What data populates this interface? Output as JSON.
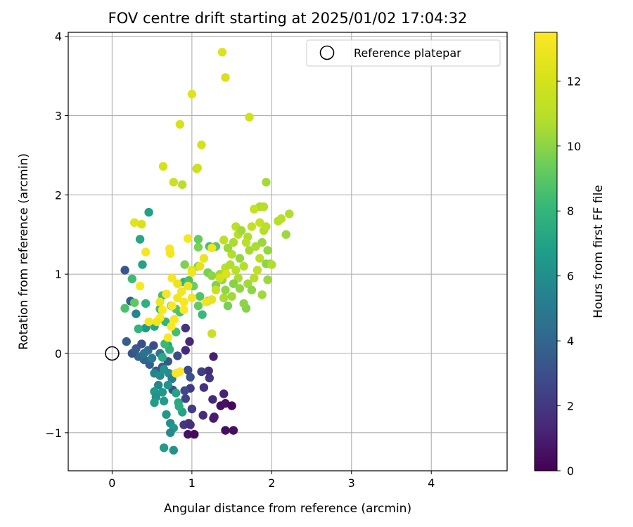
{
  "chart_data": {
    "type": "scatter",
    "title": "FOV centre drift starting at 2025/01/02 17:04:32",
    "xlabel": "Angular distance from reference (arcmin)",
    "ylabel": "Rotation from reference (arcmin)",
    "xlim": [
      -0.55,
      4.95
    ],
    "ylim": [
      -1.48,
      4.05
    ],
    "x_ticks": [
      0,
      1,
      2,
      3,
      4
    ],
    "y_ticks": [
      -1,
      0,
      1,
      2,
      3,
      4
    ],
    "grid": true,
    "legend": {
      "placement": "upper right",
      "entries": [
        "Reference platepar"
      ]
    },
    "reference_point": {
      "label": "Reference platepar",
      "x": 0,
      "y": 0
    },
    "colorbar": {
      "label": "Hours from first FF file",
      "colormap": "viridis",
      "min": 0,
      "max": 13.5,
      "ticks": [
        0,
        2,
        4,
        6,
        8,
        10,
        12
      ]
    },
    "points": [
      {
        "x": 0.95,
        "y": -1.02,
        "h": 0.6
      },
      {
        "x": 1.03,
        "y": -1.02,
        "h": 0.3
      },
      {
        "x": 1.42,
        "y": -0.97,
        "h": 0.4
      },
      {
        "x": 1.52,
        "y": -0.97,
        "h": 0.5
      },
      {
        "x": 1.27,
        "y": -0.82,
        "h": 0.8
      },
      {
        "x": 1.28,
        "y": -0.8,
        "h": 1.0
      },
      {
        "x": 1.36,
        "y": -0.66,
        "h": 0.5
      },
      {
        "x": 1.42,
        "y": -0.63,
        "h": 0.6
      },
      {
        "x": 1.5,
        "y": -0.66,
        "h": 0.3
      },
      {
        "x": 1.4,
        "y": -0.51,
        "h": 1.2
      },
      {
        "x": 1.14,
        "y": -0.78,
        "h": 1.5
      },
      {
        "x": 0.96,
        "y": -0.88,
        "h": 1.8
      },
      {
        "x": 0.9,
        "y": -0.9,
        "h": 2.0
      },
      {
        "x": 0.98,
        "y": -0.9,
        "h": 1.6
      },
      {
        "x": 1.0,
        "y": -0.7,
        "h": 2.2
      },
      {
        "x": 0.92,
        "y": -0.57,
        "h": 2.5
      },
      {
        "x": 1.26,
        "y": -0.58,
        "h": 1.4
      },
      {
        "x": 1.15,
        "y": -0.43,
        "h": 1.7
      },
      {
        "x": 0.98,
        "y": -0.44,
        "h": 2.1
      },
      {
        "x": 0.91,
        "y": -0.47,
        "h": 2.6
      },
      {
        "x": 0.76,
        "y": -0.46,
        "h": 3.0
      },
      {
        "x": 0.98,
        "y": -0.3,
        "h": 3.2
      },
      {
        "x": 1.22,
        "y": -0.31,
        "h": 1.9
      },
      {
        "x": 1.21,
        "y": -0.22,
        "h": 1.6
      },
      {
        "x": 1.12,
        "y": -0.23,
        "h": 2.3
      },
      {
        "x": 0.95,
        "y": -0.21,
        "h": 2.8
      },
      {
        "x": 1.27,
        "y": -0.04,
        "h": 1.1
      },
      {
        "x": 0.92,
        "y": 0.04,
        "h": 1.4
      },
      {
        "x": 0.97,
        "y": 0.15,
        "h": 1.3
      },
      {
        "x": 0.92,
        "y": 0.32,
        "h": 1.8
      },
      {
        "x": 0.82,
        "y": -0.03,
        "h": 2.7
      },
      {
        "x": 0.7,
        "y": -0.1,
        "h": 3.3
      },
      {
        "x": 0.63,
        "y": -0.17,
        "h": 3.6
      },
      {
        "x": 0.55,
        "y": -0.22,
        "h": 3.4
      },
      {
        "x": 0.47,
        "y": -0.14,
        "h": 3.7
      },
      {
        "x": 0.4,
        "y": -0.08,
        "h": 3.9
      },
      {
        "x": 0.33,
        "y": -0.04,
        "h": 4.1
      },
      {
        "x": 0.25,
        "y": 0.0,
        "h": 3.2
      },
      {
        "x": 0.3,
        "y": 0.06,
        "h": 3.5
      },
      {
        "x": 0.37,
        "y": 0.12,
        "h": 3.0
      },
      {
        "x": 0.45,
        "y": 0.04,
        "h": 4.4
      },
      {
        "x": 0.52,
        "y": 0.1,
        "h": 2.9
      },
      {
        "x": 0.6,
        "y": 0.0,
        "h": 4.8
      },
      {
        "x": 0.18,
        "y": 0.15,
        "h": 3.6
      },
      {
        "x": 0.16,
        "y": 1.05,
        "h": 3.3
      },
      {
        "x": 0.23,
        "y": 0.66,
        "h": 3.8
      },
      {
        "x": 0.4,
        "y": 0.0,
        "h": 4.6
      },
      {
        "x": 0.5,
        "y": -0.06,
        "h": 5.0
      },
      {
        "x": 0.53,
        "y": -0.25,
        "h": 5.5
      },
      {
        "x": 0.6,
        "y": -0.28,
        "h": 5.8
      },
      {
        "x": 0.65,
        "y": -0.2,
        "h": 6.2
      },
      {
        "x": 0.71,
        "y": -0.25,
        "h": 6.0
      },
      {
        "x": 0.75,
        "y": -0.32,
        "h": 5.3
      },
      {
        "x": 0.58,
        "y": -0.4,
        "h": 5.6
      },
      {
        "x": 0.63,
        "y": -0.49,
        "h": 6.4
      },
      {
        "x": 0.53,
        "y": -0.48,
        "h": 6.6
      },
      {
        "x": 0.55,
        "y": -0.55,
        "h": 6.1
      },
      {
        "x": 0.53,
        "y": -0.62,
        "h": 6.8
      },
      {
        "x": 0.65,
        "y": -0.6,
        "h": 6.7
      },
      {
        "x": 0.7,
        "y": -0.4,
        "h": 6.3
      },
      {
        "x": 0.8,
        "y": -0.5,
        "h": 7.1
      },
      {
        "x": 0.83,
        "y": -0.62,
        "h": 7.3
      },
      {
        "x": 0.88,
        "y": -0.74,
        "h": 7.0
      },
      {
        "x": 0.73,
        "y": -0.88,
        "h": 6.0
      },
      {
        "x": 0.77,
        "y": -0.94,
        "h": 6.4
      },
      {
        "x": 0.73,
        "y": -1.0,
        "h": 5.8
      },
      {
        "x": 0.68,
        "y": -0.77,
        "h": 6.5
      },
      {
        "x": 0.65,
        "y": -1.19,
        "h": 6.7
      },
      {
        "x": 0.77,
        "y": -1.22,
        "h": 6.2
      },
      {
        "x": 0.84,
        "y": -0.67,
        "h": 7.5
      },
      {
        "x": 0.7,
        "y": 0.1,
        "h": 7.0
      },
      {
        "x": 0.72,
        "y": 0.05,
        "h": 7.8
      },
      {
        "x": 0.66,
        "y": 0.12,
        "h": 8.2
      },
      {
        "x": 0.63,
        "y": -0.05,
        "h": 7.4
      },
      {
        "x": 0.53,
        "y": 0.34,
        "h": 7.2
      },
      {
        "x": 0.42,
        "y": 0.32,
        "h": 6.5
      },
      {
        "x": 0.33,
        "y": 0.31,
        "h": 7.9
      },
      {
        "x": 0.3,
        "y": 0.5,
        "h": 5.6
      },
      {
        "x": 0.46,
        "y": 1.78,
        "h": 6.9
      },
      {
        "x": 0.35,
        "y": 1.44,
        "h": 7.2
      },
      {
        "x": 0.38,
        "y": 1.12,
        "h": 7.0
      },
      {
        "x": 0.25,
        "y": 0.94,
        "h": 8.3
      },
      {
        "x": 0.16,
        "y": 0.57,
        "h": 8.6
      },
      {
        "x": 0.28,
        "y": 0.64,
        "h": 9.1
      },
      {
        "x": 0.42,
        "y": 0.63,
        "h": 7.7
      },
      {
        "x": 0.6,
        "y": 0.56,
        "h": 8.4
      },
      {
        "x": 0.67,
        "y": 0.4,
        "h": 8.0
      },
      {
        "x": 0.8,
        "y": 0.56,
        "h": 8.9
      },
      {
        "x": 0.85,
        "y": 0.52,
        "h": 8.7
      },
      {
        "x": 0.8,
        "y": 0.27,
        "h": 8.5
      },
      {
        "x": 0.63,
        "y": 0.73,
        "h": 8.6
      },
      {
        "x": 0.74,
        "y": 0.6,
        "h": 9.0
      },
      {
        "x": 0.9,
        "y": 0.9,
        "h": 7.9
      },
      {
        "x": 0.96,
        "y": 0.92,
        "h": 8.6
      },
      {
        "x": 1.02,
        "y": 0.85,
        "h": 9.4
      },
      {
        "x": 1.1,
        "y": 0.72,
        "h": 8.8
      },
      {
        "x": 1.13,
        "y": 0.49,
        "h": 8.2
      },
      {
        "x": 1.08,
        "y": 0.6,
        "h": 9.2
      },
      {
        "x": 1.2,
        "y": 0.66,
        "h": 9.5
      },
      {
        "x": 0.91,
        "y": 1.12,
        "h": 9.7
      },
      {
        "x": 1.08,
        "y": 1.1,
        "h": 9.3
      },
      {
        "x": 1.2,
        "y": 1.02,
        "h": 9.6
      },
      {
        "x": 1.22,
        "y": 1.35,
        "h": 8.4
      },
      {
        "x": 1.3,
        "y": 1.35,
        "h": 9.0
      },
      {
        "x": 1.08,
        "y": 1.34,
        "h": 9.7
      },
      {
        "x": 1.08,
        "y": 1.44,
        "h": 9.2
      },
      {
        "x": 1.25,
        "y": 0.98,
        "h": 10.0
      },
      {
        "x": 1.3,
        "y": 0.86,
        "h": 9.8
      },
      {
        "x": 1.38,
        "y": 0.93,
        "h": 10.2
      },
      {
        "x": 1.4,
        "y": 0.7,
        "h": 10.6
      },
      {
        "x": 1.45,
        "y": 0.6,
        "h": 9.6
      },
      {
        "x": 1.42,
        "y": 0.8,
        "h": 10.1
      },
      {
        "x": 1.5,
        "y": 0.72,
        "h": 10.4
      },
      {
        "x": 1.35,
        "y": 1.0,
        "h": 10.5
      },
      {
        "x": 1.42,
        "y": 1.08,
        "h": 10.9
      },
      {
        "x": 1.48,
        "y": 1.12,
        "h": 10.7
      },
      {
        "x": 1.55,
        "y": 1.05,
        "h": 11.0
      },
      {
        "x": 1.5,
        "y": 1.25,
        "h": 10.8
      },
      {
        "x": 1.4,
        "y": 1.43,
        "h": 11.2
      },
      {
        "x": 1.45,
        "y": 1.33,
        "h": 10.3
      },
      {
        "x": 1.52,
        "y": 1.4,
        "h": 10.6
      },
      {
        "x": 1.58,
        "y": 1.5,
        "h": 10.9
      },
      {
        "x": 1.55,
        "y": 1.6,
        "h": 11.1
      },
      {
        "x": 1.62,
        "y": 1.55,
        "h": 10.4
      },
      {
        "x": 1.7,
        "y": 1.47,
        "h": 10.7
      },
      {
        "x": 1.75,
        "y": 1.6,
        "h": 11.3
      },
      {
        "x": 1.68,
        "y": 1.4,
        "h": 11.0
      },
      {
        "x": 1.72,
        "y": 1.3,
        "h": 10.5
      },
      {
        "x": 1.6,
        "y": 1.2,
        "h": 10.2
      },
      {
        "x": 1.65,
        "y": 1.1,
        "h": 10.8
      },
      {
        "x": 1.58,
        "y": 0.95,
        "h": 10.6
      },
      {
        "x": 1.52,
        "y": 0.88,
        "h": 9.9
      },
      {
        "x": 1.6,
        "y": 0.82,
        "h": 10.1
      },
      {
        "x": 1.7,
        "y": 0.88,
        "h": 10.4
      },
      {
        "x": 1.75,
        "y": 0.8,
        "h": 10.0
      },
      {
        "x": 1.78,
        "y": 0.95,
        "h": 10.9
      },
      {
        "x": 1.82,
        "y": 1.05,
        "h": 11.2
      },
      {
        "x": 1.85,
        "y": 1.2,
        "h": 11.0
      },
      {
        "x": 1.8,
        "y": 1.35,
        "h": 10.6
      },
      {
        "x": 1.88,
        "y": 1.4,
        "h": 10.3
      },
      {
        "x": 1.9,
        "y": 1.55,
        "h": 10.8
      },
      {
        "x": 1.85,
        "y": 1.65,
        "h": 11.4
      },
      {
        "x": 1.93,
        "y": 1.6,
        "h": 11.0
      },
      {
        "x": 1.95,
        "y": 1.3,
        "h": 10.2
      },
      {
        "x": 1.98,
        "y": 1.13,
        "h": 10.5
      },
      {
        "x": 1.93,
        "y": 1.13,
        "h": 10.0
      },
      {
        "x": 1.95,
        "y": 0.93,
        "h": 10.3
      },
      {
        "x": 2.0,
        "y": 1.12,
        "h": 10.7
      },
      {
        "x": 1.88,
        "y": 0.74,
        "h": 10.4
      },
      {
        "x": 1.68,
        "y": 0.57,
        "h": 9.9
      },
      {
        "x": 1.65,
        "y": 0.63,
        "h": 10.0
      },
      {
        "x": 1.85,
        "y": 1.85,
        "h": 10.6
      },
      {
        "x": 1.9,
        "y": 1.85,
        "h": 10.9
      },
      {
        "x": 1.78,
        "y": 1.82,
        "h": 11.5
      },
      {
        "x": 2.08,
        "y": 1.67,
        "h": 10.8
      },
      {
        "x": 2.12,
        "y": 1.7,
        "h": 10.9
      },
      {
        "x": 2.22,
        "y": 1.76,
        "h": 10.7
      },
      {
        "x": 2.18,
        "y": 1.5,
        "h": 10.3
      },
      {
        "x": 1.93,
        "y": 2.16,
        "h": 10.5
      },
      {
        "x": 1.72,
        "y": 2.98,
        "h": 11.8
      },
      {
        "x": 1.38,
        "y": 3.8,
        "h": 12.3
      },
      {
        "x": 1.42,
        "y": 3.48,
        "h": 12.1
      },
      {
        "x": 1.0,
        "y": 3.27,
        "h": 12.4
      },
      {
        "x": 0.85,
        "y": 2.89,
        "h": 12.2
      },
      {
        "x": 1.12,
        "y": 2.63,
        "h": 12.0
      },
      {
        "x": 1.06,
        "y": 2.33,
        "h": 11.5
      },
      {
        "x": 1.07,
        "y": 2.34,
        "h": 11.8
      },
      {
        "x": 0.64,
        "y": 2.36,
        "h": 12.0
      },
      {
        "x": 0.77,
        "y": 2.16,
        "h": 11.6
      },
      {
        "x": 0.88,
        "y": 2.13,
        "h": 11.0
      },
      {
        "x": 0.28,
        "y": 1.65,
        "h": 12.4
      },
      {
        "x": 0.37,
        "y": 1.63,
        "h": 12.2
      },
      {
        "x": 1.25,
        "y": 0.25,
        "h": 11.6
      },
      {
        "x": 1.3,
        "y": 0.8,
        "h": 11.5
      },
      {
        "x": 1.35,
        "y": 0.95,
        "h": 12.0
      },
      {
        "x": 1.43,
        "y": 1.0,
        "h": 12.3
      },
      {
        "x": 1.0,
        "y": 1.05,
        "h": 12.5
      },
      {
        "x": 1.1,
        "y": 1.1,
        "h": 12.6
      },
      {
        "x": 1.15,
        "y": 1.2,
        "h": 12.8
      },
      {
        "x": 1.25,
        "y": 1.33,
        "h": 13.0
      },
      {
        "x": 0.95,
        "y": 1.45,
        "h": 13.2
      },
      {
        "x": 1.25,
        "y": 0.68,
        "h": 12.7
      },
      {
        "x": 1.18,
        "y": 0.65,
        "h": 12.9
      },
      {
        "x": 1.0,
        "y": 0.7,
        "h": 13.1
      },
      {
        "x": 0.9,
        "y": 0.65,
        "h": 13.3
      },
      {
        "x": 0.82,
        "y": 0.7,
        "h": 13.0
      },
      {
        "x": 0.75,
        "y": 0.95,
        "h": 13.2
      },
      {
        "x": 0.75,
        "y": 0.6,
        "h": 13.4
      },
      {
        "x": 0.68,
        "y": 0.75,
        "h": 13.1
      },
      {
        "x": 0.6,
        "y": 0.65,
        "h": 12.9
      },
      {
        "x": 0.63,
        "y": 0.55,
        "h": 13.3
      },
      {
        "x": 0.6,
        "y": 0.45,
        "h": 13.4
      },
      {
        "x": 0.56,
        "y": 0.4,
        "h": 13.0
      },
      {
        "x": 0.46,
        "y": 0.4,
        "h": 13.2
      },
      {
        "x": 0.7,
        "y": 0.2,
        "h": 13.5
      },
      {
        "x": 0.74,
        "y": 0.34,
        "h": 13.4
      },
      {
        "x": 0.78,
        "y": 0.43,
        "h": 13.3
      },
      {
        "x": 0.82,
        "y": 0.88,
        "h": 12.8
      },
      {
        "x": 0.87,
        "y": 0.78,
        "h": 13.1
      },
      {
        "x": 0.95,
        "y": 0.85,
        "h": 13.0
      },
      {
        "x": 0.42,
        "y": 1.28,
        "h": 13.2
      },
      {
        "x": 0.73,
        "y": 1.26,
        "h": 13.1
      },
      {
        "x": 0.72,
        "y": 1.32,
        "h": 13.3
      },
      {
        "x": 0.35,
        "y": 0.85,
        "h": 13.4
      },
      {
        "x": 0.9,
        "y": 0.55,
        "h": 13.5
      },
      {
        "x": 0.85,
        "y": -0.23,
        "h": 13.5
      },
      {
        "x": 0.8,
        "y": -0.25,
        "h": 13.4
      },
      {
        "x": 1.0,
        "y": 1.02,
        "h": 13.0
      }
    ]
  }
}
